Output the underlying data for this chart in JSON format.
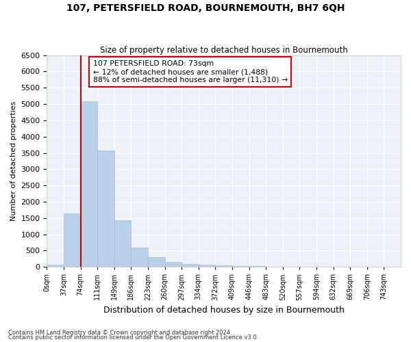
{
  "title": "107, PETERSFIELD ROAD, BOURNEMOUTH, BH7 6QH",
  "subtitle": "Size of property relative to detached houses in Bournemouth",
  "xlabel": "Distribution of detached houses by size in Bournemouth",
  "ylabel": "Number of detached properties",
  "footnote1": "Contains HM Land Registry data © Crown copyright and database right 2024.",
  "footnote2": "Contains public sector information licensed under the Open Government Licence v3.0.",
  "annotation_title": "107 PETERSFIELD ROAD: 73sqm",
  "annotation_line1": "← 12% of detached houses are smaller (1,488)",
  "annotation_line2": "88% of semi-detached houses are larger (11,310) →",
  "bar_color": "#b8d0e8",
  "bar_edge_color": "#9ab8d8",
  "vline_color": "#cc0000",
  "annotation_box_color": "#ffffff",
  "annotation_box_edge": "#cc0000",
  "background_color": "#eef2f8",
  "bin_labels": [
    "0sqm",
    "37sqm",
    "74sqm",
    "111sqm",
    "149sqm",
    "186sqm",
    "223sqm",
    "260sqm",
    "297sqm",
    "334sqm",
    "372sqm",
    "409sqm",
    "446sqm",
    "483sqm",
    "520sqm",
    "557sqm",
    "594sqm",
    "632sqm",
    "669sqm",
    "706sqm",
    "743sqm"
  ],
  "bin_values": [
    60,
    1640,
    5080,
    3580,
    1430,
    590,
    295,
    155,
    90,
    65,
    45,
    25,
    15,
    8,
    4,
    3,
    2,
    1,
    1,
    1,
    0
  ],
  "vline_bin": 2,
  "ylim": [
    0,
    6500
  ],
  "yticks": [
    0,
    500,
    1000,
    1500,
    2000,
    2500,
    3000,
    3500,
    4000,
    4500,
    5000,
    5500,
    6000,
    6500
  ]
}
